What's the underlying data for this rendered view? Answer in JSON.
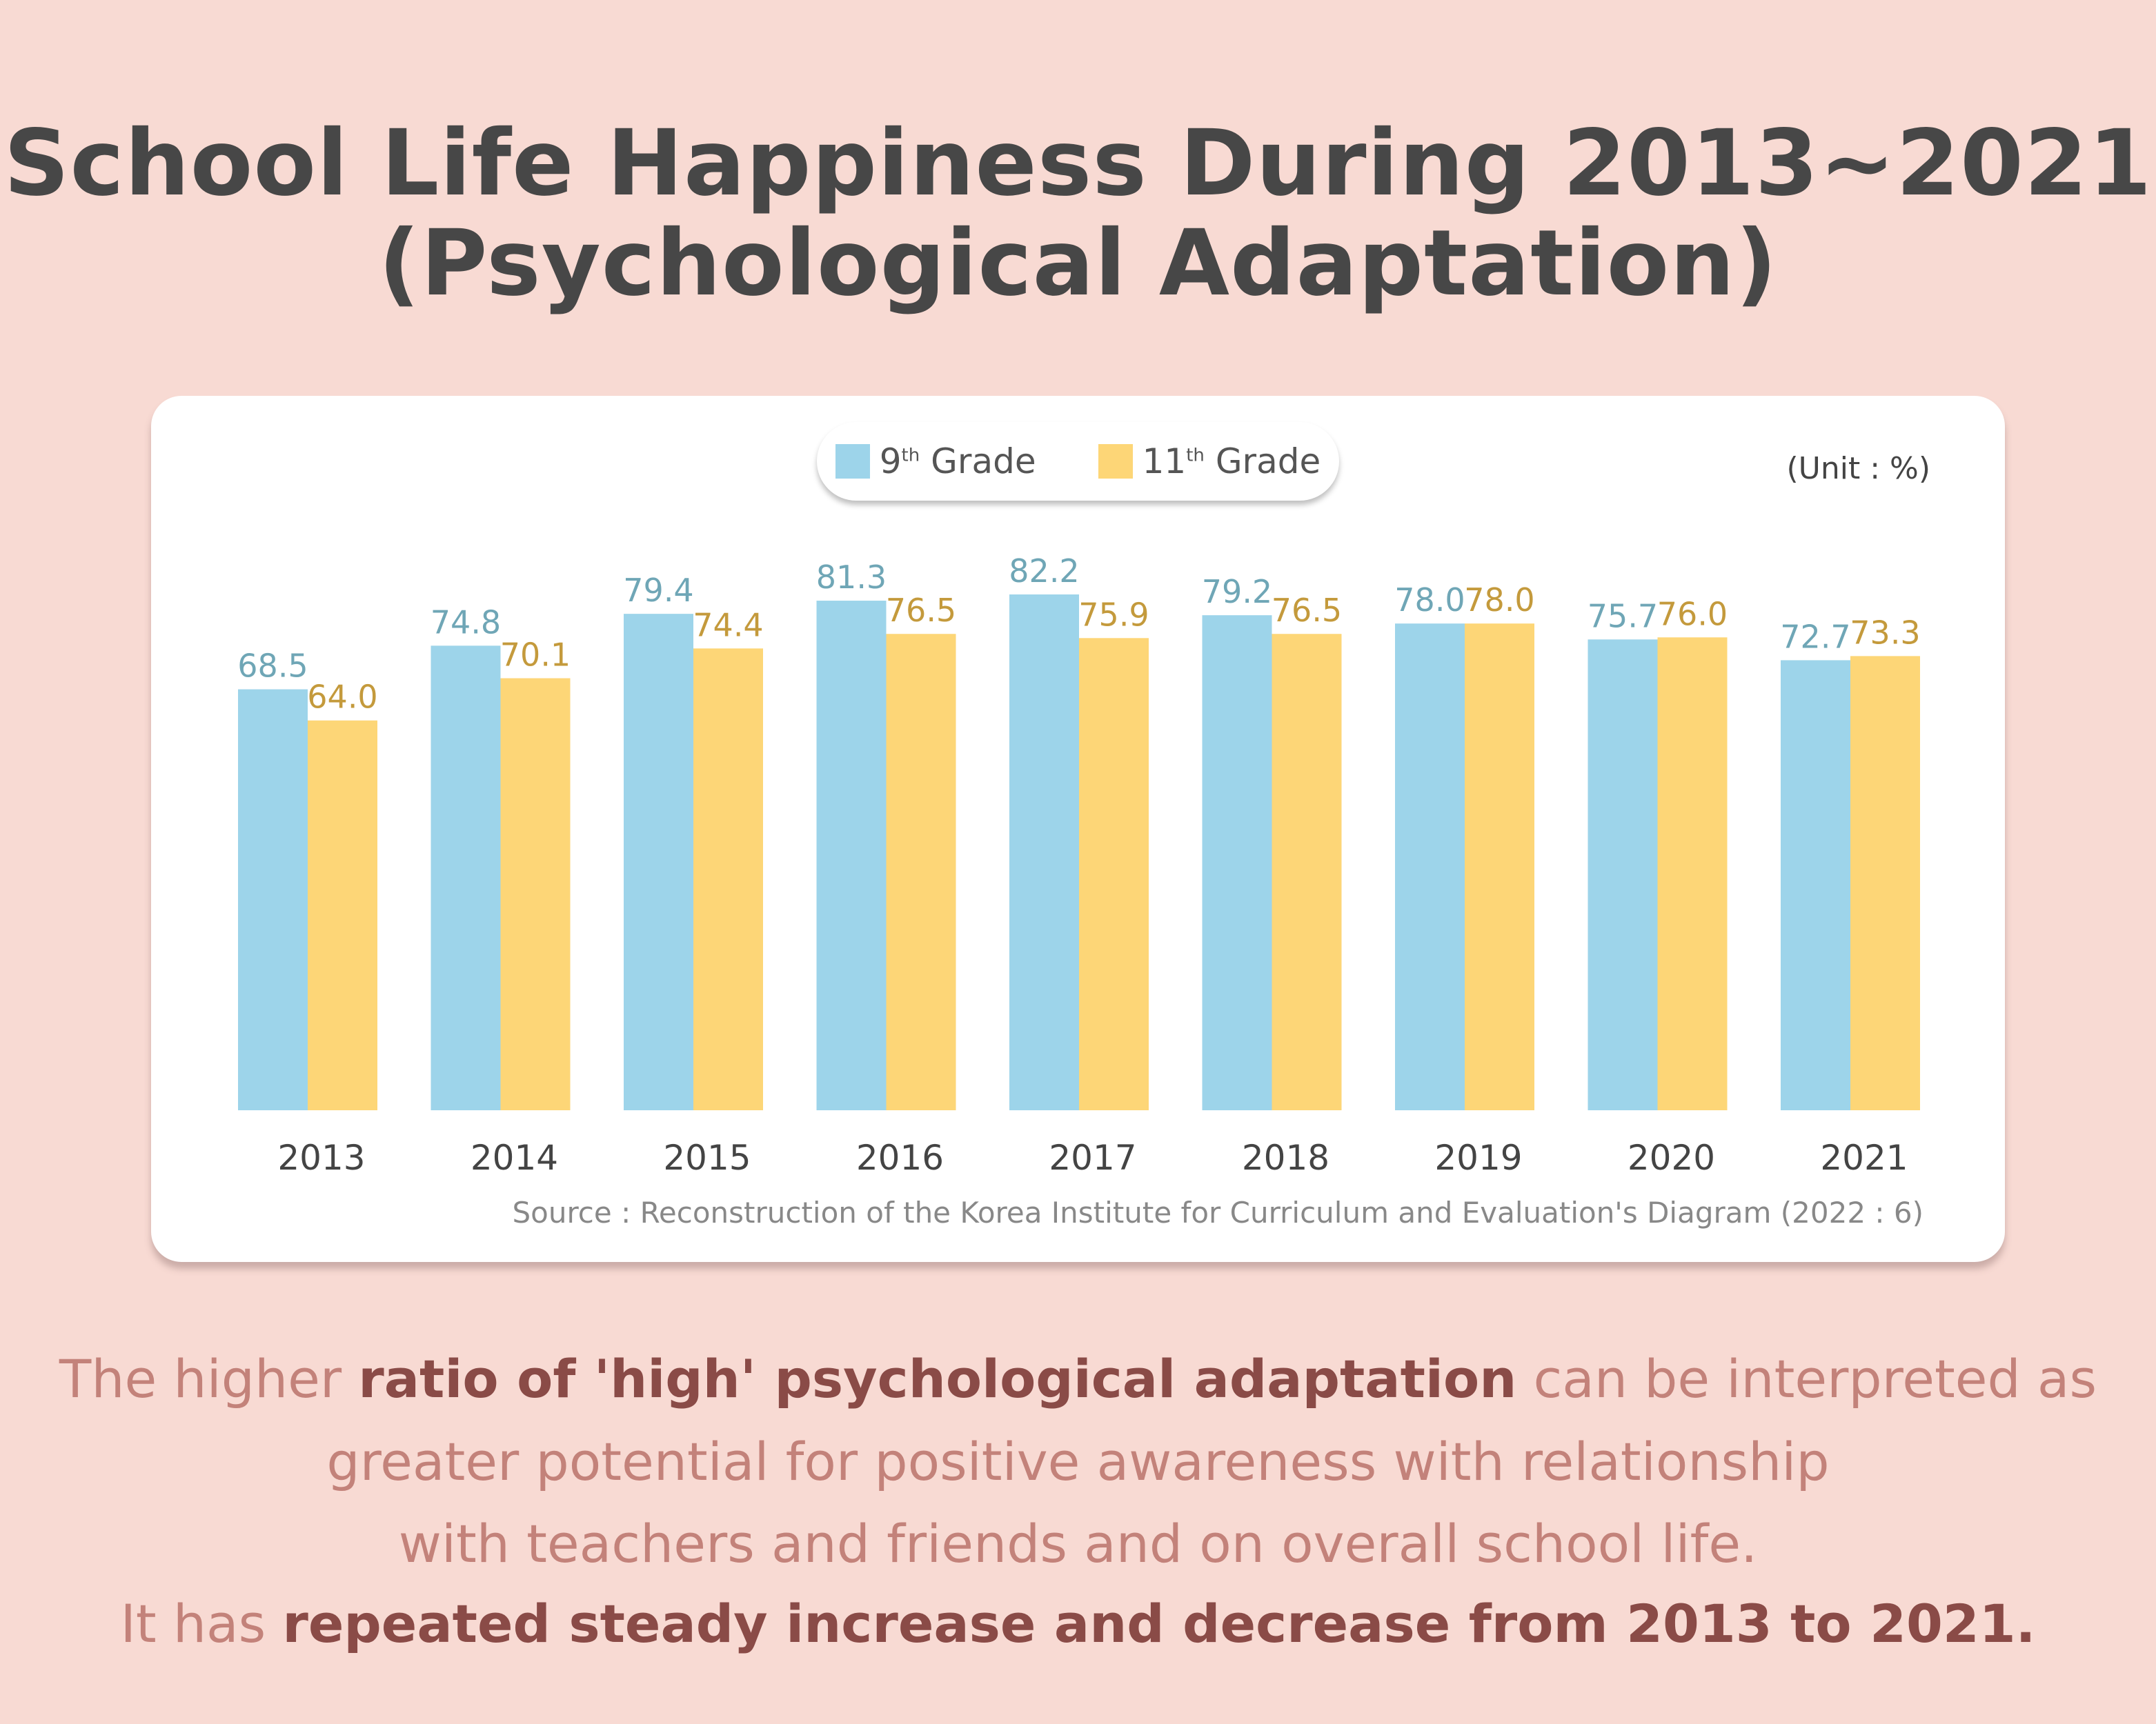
{
  "title_line1": "School Life Happiness During 2013~2021",
  "title_line2": "(Psychological Adaptation)",
  "unit": "(Unit : %)",
  "source": "Source : Reconstruction of the Korea Institute for Curriculum and Evaluation's Diagram (2022 : 6)",
  "legend": [
    {
      "num": "9",
      "sup": "th",
      "label": "Grade"
    },
    {
      "num": "11",
      "sup": "th",
      "label": "Grade"
    }
  ],
  "body": {
    "l1a": "The higher ",
    "l1b": "ratio of 'high' psychological adaptation",
    "l1c": " can be interpreted as",
    "l2": "greater potential for positive awareness with relationship",
    "l3": "with teachers and friends and on overall school life.",
    "l4a": "It has ",
    "l4b": "repeated steady increase and decrease from 2013 to 2021."
  },
  "chart_data": {
    "type": "bar",
    "title": "School Life Happiness During 2013~2021 (Psychological Adaptation)",
    "categories": [
      "2013",
      "2014",
      "2015",
      "2016",
      "2017",
      "2018",
      "2019",
      "2020",
      "2021"
    ],
    "series": [
      {
        "name": "9th Grade",
        "color": "#9dd4ea",
        "label_color": "#6fa6b6",
        "values": [
          68.5,
          74.8,
          79.4,
          81.3,
          82.2,
          79.2,
          78.0,
          75.7,
          72.7
        ]
      },
      {
        "name": "11th Grade",
        "color": "#fdd677",
        "label_color": "#c49a3c",
        "values": [
          64.0,
          70.1,
          74.4,
          76.5,
          75.9,
          76.5,
          78.0,
          76.0,
          73.3
        ]
      }
    ],
    "ylabel": "%",
    "ylim": [
      7.7,
      90
    ],
    "grid": false,
    "legend": "top-center"
  }
}
